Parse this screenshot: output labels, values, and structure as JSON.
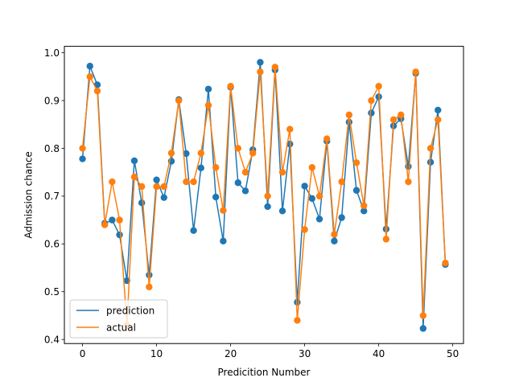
{
  "chart_data": {
    "type": "line",
    "xlabel": "Predicition Number",
    "ylabel": "Admission chance",
    "xlim": [
      -2.45,
      51.45
    ],
    "ylim": [
      0.4,
      1.0
    ],
    "ylim_view": [
      0.3915,
      1.0135
    ],
    "xticks": [
      0,
      10,
      20,
      30,
      40,
      50
    ],
    "yticks": [
      0.4,
      0.5,
      0.6,
      0.7,
      0.8,
      0.9,
      1.0
    ],
    "xtick_labels": [
      "0",
      "10",
      "20",
      "30",
      "40",
      "50"
    ],
    "ytick_labels": [
      "0.4",
      "0.5",
      "0.6",
      "0.7",
      "0.8",
      "0.9",
      "1.0"
    ],
    "grid": false,
    "legend_position": "lower-left",
    "x": [
      0,
      1,
      2,
      3,
      4,
      5,
      6,
      7,
      8,
      9,
      10,
      11,
      12,
      13,
      14,
      15,
      16,
      17,
      18,
      19,
      20,
      21,
      22,
      23,
      24,
      25,
      26,
      27,
      28,
      29,
      30,
      31,
      32,
      33,
      34,
      35,
      36,
      37,
      38,
      39,
      40,
      41,
      42,
      43,
      44,
      45,
      46,
      47,
      48,
      49
    ],
    "series": [
      {
        "name": "prediction",
        "color": "#1f77b4",
        "values": [
          0.778,
          0.972,
          0.933,
          0.643,
          0.65,
          0.619,
          0.523,
          0.774,
          0.686,
          0.535,
          0.734,
          0.697,
          0.773,
          0.902,
          0.789,
          0.628,
          0.759,
          0.924,
          0.698,
          0.606,
          0.928,
          0.728,
          0.711,
          0.797,
          0.98,
          0.678,
          0.964,
          0.669,
          0.809,
          0.478,
          0.721,
          0.695,
          0.652,
          0.815,
          0.606,
          0.655,
          0.855,
          0.712,
          0.669,
          0.874,
          0.908,
          0.631,
          0.847,
          0.862,
          0.762,
          0.957,
          0.423,
          0.771,
          0.88,
          0.557
        ]
      },
      {
        "name": "actual",
        "color": "#ff7f0e",
        "values": [
          0.8,
          0.95,
          0.92,
          0.64,
          0.73,
          0.65,
          0.43,
          0.74,
          0.72,
          0.51,
          0.72,
          0.72,
          0.79,
          0.9,
          0.73,
          0.73,
          0.79,
          0.89,
          0.76,
          0.67,
          0.93,
          0.8,
          0.75,
          0.79,
          0.96,
          0.7,
          0.97,
          0.75,
          0.84,
          0.44,
          0.63,
          0.76,
          0.7,
          0.82,
          0.62,
          0.73,
          0.87,
          0.77,
          0.68,
          0.9,
          0.93,
          0.61,
          0.86,
          0.87,
          0.73,
          0.96,
          0.45,
          0.8,
          0.86,
          0.56
        ]
      }
    ]
  }
}
